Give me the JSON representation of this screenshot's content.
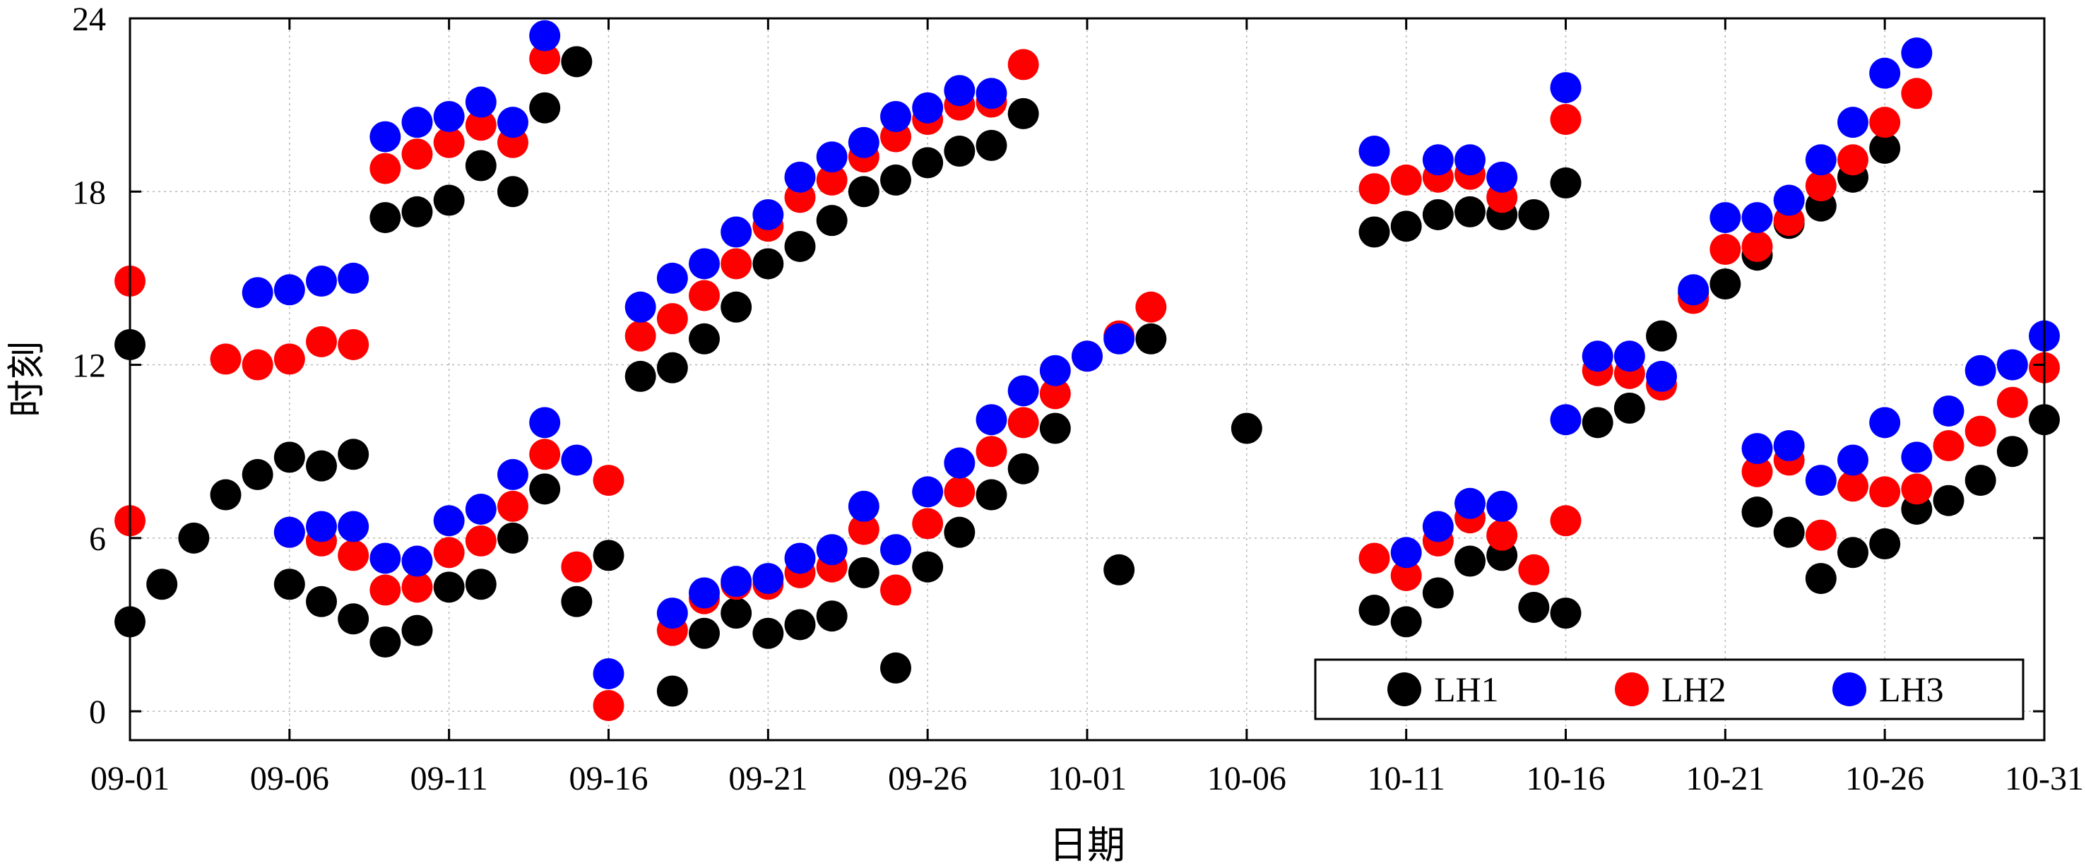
{
  "chart_data": {
    "type": "scatter",
    "xlabel": "日期",
    "ylabel": "时刻",
    "x_tick_labels": [
      "09-01",
      "09-06",
      "09-11",
      "09-16",
      "09-21",
      "09-26",
      "10-01",
      "10-06",
      "10-11",
      "10-16",
      "10-21",
      "10-26",
      "10-31"
    ],
    "x_ticks": [
      1,
      6,
      11,
      16,
      21,
      26,
      31,
      36,
      41,
      46,
      51,
      56,
      61
    ],
    "xlim": [
      1,
      61
    ],
    "y_tick_labels": [
      "0",
      "6",
      "12",
      "18",
      "24"
    ],
    "y_ticks": [
      0,
      6,
      12,
      18,
      24
    ],
    "ylim": [
      -1,
      24
    ],
    "grid": true,
    "legend_position": "bottom-right",
    "x_unit_note": "x values are day index: 1 = 09-01, 31 = 10-01, 61 = 10-31",
    "series": [
      {
        "name": "LH1",
        "color": "#000000",
        "points": [
          [
            1,
            3.1
          ],
          [
            1,
            12.7
          ],
          [
            2,
            4.4
          ],
          [
            3,
            6.0
          ],
          [
            4,
            7.5
          ],
          [
            5,
            8.2
          ],
          [
            6,
            4.4
          ],
          [
            6,
            8.8
          ],
          [
            7,
            3.8
          ],
          [
            7,
            8.5
          ],
          [
            8,
            3.2
          ],
          [
            8,
            8.9
          ],
          [
            9,
            2.4
          ],
          [
            9,
            17.1
          ],
          [
            10,
            2.8
          ],
          [
            10,
            17.3
          ],
          [
            11,
            4.3
          ],
          [
            11,
            17.7
          ],
          [
            12,
            4.4
          ],
          [
            12,
            18.9
          ],
          [
            13,
            6.0
          ],
          [
            13,
            18.0
          ],
          [
            14,
            7.7
          ],
          [
            14,
            20.9
          ],
          [
            15,
            22.5
          ],
          [
            15,
            3.8
          ],
          [
            16,
            5.4
          ],
          [
            18,
            0.7
          ],
          [
            18,
            11.9
          ],
          [
            17,
            11.6
          ],
          [
            19,
            2.7
          ],
          [
            19,
            12.9
          ],
          [
            20,
            3.4
          ],
          [
            20,
            14.0
          ],
          [
            21,
            2.7
          ],
          [
            21,
            15.5
          ],
          [
            22,
            3.0
          ],
          [
            22,
            16.1
          ],
          [
            23,
            3.3
          ],
          [
            23,
            17.0
          ],
          [
            24,
            4.8
          ],
          [
            24,
            18.0
          ],
          [
            25,
            1.5
          ],
          [
            25,
            18.4
          ],
          [
            26,
            5.0
          ],
          [
            26,
            19.0
          ],
          [
            27,
            6.2
          ],
          [
            27,
            19.4
          ],
          [
            28,
            7.5
          ],
          [
            28,
            19.6
          ],
          [
            29,
            8.4
          ],
          [
            29,
            20.7
          ],
          [
            30,
            9.8
          ],
          [
            32,
            4.9
          ],
          [
            33,
            12.9
          ],
          [
            36,
            9.8
          ],
          [
            40,
            3.5
          ],
          [
            40,
            16.6
          ],
          [
            41,
            3.1
          ],
          [
            41,
            16.8
          ],
          [
            42,
            4.1
          ],
          [
            42,
            17.2
          ],
          [
            43,
            5.2
          ],
          [
            43,
            17.3
          ],
          [
            44,
            5.4
          ],
          [
            44,
            17.2
          ],
          [
            45,
            3.6
          ],
          [
            45,
            17.2
          ],
          [
            46,
            3.4
          ],
          [
            46,
            18.3
          ],
          [
            47,
            10.0
          ],
          [
            48,
            10.5
          ],
          [
            49,
            13.0
          ],
          [
            50,
            14.5
          ],
          [
            51,
            14.8
          ],
          [
            52,
            15.8
          ],
          [
            52,
            6.9
          ],
          [
            53,
            16.9
          ],
          [
            53,
            6.2
          ],
          [
            54,
            17.5
          ],
          [
            54,
            4.6
          ],
          [
            55,
            18.5
          ],
          [
            55,
            5.5
          ],
          [
            56,
            19.5
          ],
          [
            56,
            5.8
          ],
          [
            57,
            7.0
          ],
          [
            58,
            7.3
          ],
          [
            59,
            8.0
          ],
          [
            60,
            9.0
          ],
          [
            61,
            10.1
          ]
        ]
      },
      {
        "name": "LH2",
        "color": "#ff0000",
        "points": [
          [
            1,
            6.6
          ],
          [
            1,
            14.9
          ],
          [
            4,
            12.2
          ],
          [
            5,
            12.0
          ],
          [
            6,
            6.2
          ],
          [
            6,
            12.2
          ],
          [
            7,
            5.9
          ],
          [
            7,
            12.8
          ],
          [
            8,
            5.4
          ],
          [
            8,
            12.7
          ],
          [
            9,
            4.2
          ],
          [
            9,
            18.8
          ],
          [
            10,
            4.3
          ],
          [
            10,
            19.3
          ],
          [
            11,
            5.5
          ],
          [
            11,
            19.7
          ],
          [
            12,
            5.9
          ],
          [
            12,
            20.3
          ],
          [
            13,
            7.1
          ],
          [
            13,
            19.7
          ],
          [
            14,
            8.9
          ],
          [
            14,
            22.6
          ],
          [
            15,
            5.0
          ],
          [
            16,
            8.0
          ],
          [
            16,
            0.2
          ],
          [
            17,
            13.0
          ],
          [
            18,
            2.8
          ],
          [
            18,
            13.6
          ],
          [
            19,
            3.9
          ],
          [
            19,
            14.4
          ],
          [
            20,
            4.4
          ],
          [
            20,
            15.5
          ],
          [
            21,
            4.4
          ],
          [
            21,
            16.8
          ],
          [
            22,
            4.8
          ],
          [
            22,
            17.8
          ],
          [
            23,
            5.0
          ],
          [
            23,
            18.4
          ],
          [
            24,
            6.3
          ],
          [
            24,
            19.2
          ],
          [
            25,
            4.2
          ],
          [
            25,
            19.9
          ],
          [
            26,
            6.5
          ],
          [
            26,
            20.5
          ],
          [
            27,
            7.6
          ],
          [
            27,
            21.0
          ],
          [
            28,
            9.0
          ],
          [
            28,
            21.1
          ],
          [
            29,
            10.0
          ],
          [
            29,
            22.4
          ],
          [
            30,
            11.0
          ],
          [
            31,
            12.3
          ],
          [
            32,
            13.0
          ],
          [
            33,
            14.0
          ],
          [
            40,
            5.3
          ],
          [
            40,
            18.1
          ],
          [
            41,
            4.7
          ],
          [
            41,
            18.4
          ],
          [
            42,
            5.9
          ],
          [
            42,
            18.5
          ],
          [
            43,
            6.7
          ],
          [
            43,
            18.6
          ],
          [
            44,
            6.1
          ],
          [
            44,
            17.8
          ],
          [
            45,
            4.9
          ],
          [
            46,
            6.6
          ],
          [
            46,
            20.5
          ],
          [
            47,
            11.8
          ],
          [
            48,
            11.7
          ],
          [
            49,
            11.3
          ],
          [
            50,
            14.3
          ],
          [
            51,
            16.0
          ],
          [
            52,
            16.1
          ],
          [
            52,
            8.3
          ],
          [
            53,
            17.0
          ],
          [
            53,
            8.7
          ],
          [
            54,
            18.2
          ],
          [
            54,
            6.1
          ],
          [
            55,
            19.1
          ],
          [
            55,
            7.8
          ],
          [
            56,
            20.4
          ],
          [
            56,
            7.6
          ],
          [
            57,
            21.4
          ],
          [
            57,
            7.7
          ],
          [
            58,
            9.2
          ],
          [
            59,
            9.7
          ],
          [
            60,
            10.7
          ],
          [
            61,
            11.9
          ]
        ]
      },
      {
        "name": "LH3",
        "color": "#0000ff",
        "points": [
          [
            5,
            14.5
          ],
          [
            6,
            14.6
          ],
          [
            6,
            6.2
          ],
          [
            7,
            14.9
          ],
          [
            7,
            6.4
          ],
          [
            8,
            15.0
          ],
          [
            8,
            6.4
          ],
          [
            9,
            19.9
          ],
          [
            9,
            5.3
          ],
          [
            10,
            20.4
          ],
          [
            10,
            5.2
          ],
          [
            11,
            20.6
          ],
          [
            11,
            6.6
          ],
          [
            12,
            21.1
          ],
          [
            12,
            7.0
          ],
          [
            13,
            20.4
          ],
          [
            13,
            8.2
          ],
          [
            14,
            23.4
          ],
          [
            14,
            10.0
          ],
          [
            15,
            8.7
          ],
          [
            16,
            1.3
          ],
          [
            17,
            14.0
          ],
          [
            18,
            3.4
          ],
          [
            18,
            15.0
          ],
          [
            19,
            4.1
          ],
          [
            19,
            15.5
          ],
          [
            20,
            4.5
          ],
          [
            20,
            16.6
          ],
          [
            21,
            4.6
          ],
          [
            21,
            17.2
          ],
          [
            22,
            5.3
          ],
          [
            22,
            18.5
          ],
          [
            23,
            5.6
          ],
          [
            23,
            19.2
          ],
          [
            24,
            7.1
          ],
          [
            24,
            19.7
          ],
          [
            25,
            5.6
          ],
          [
            25,
            20.6
          ],
          [
            26,
            7.6
          ],
          [
            26,
            20.9
          ],
          [
            27,
            8.6
          ],
          [
            27,
            21.5
          ],
          [
            28,
            10.1
          ],
          [
            28,
            21.4
          ],
          [
            29,
            11.1
          ],
          [
            30,
            11.8
          ],
          [
            31,
            12.3
          ],
          [
            32,
            12.9
          ],
          [
            40,
            19.4
          ],
          [
            41,
            5.5
          ],
          [
            42,
            6.4
          ],
          [
            42,
            19.1
          ],
          [
            43,
            7.2
          ],
          [
            43,
            19.1
          ],
          [
            44,
            7.1
          ],
          [
            44,
            18.5
          ],
          [
            46,
            21.6
          ],
          [
            46,
            10.1
          ],
          [
            47,
            12.3
          ],
          [
            48,
            12.3
          ],
          [
            49,
            11.6
          ],
          [
            50,
            14.6
          ],
          [
            51,
            17.1
          ],
          [
            52,
            17.1
          ],
          [
            52,
            9.1
          ],
          [
            53,
            17.7
          ],
          [
            53,
            9.2
          ],
          [
            54,
            19.1
          ],
          [
            54,
            8.0
          ],
          [
            55,
            20.4
          ],
          [
            55,
            8.7
          ],
          [
            56,
            22.1
          ],
          [
            56,
            10.0
          ],
          [
            57,
            22.8
          ],
          [
            57,
            8.8
          ],
          [
            58,
            10.4
          ],
          [
            59,
            11.8
          ],
          [
            60,
            12.0
          ],
          [
            61,
            13.0
          ]
        ]
      }
    ]
  }
}
